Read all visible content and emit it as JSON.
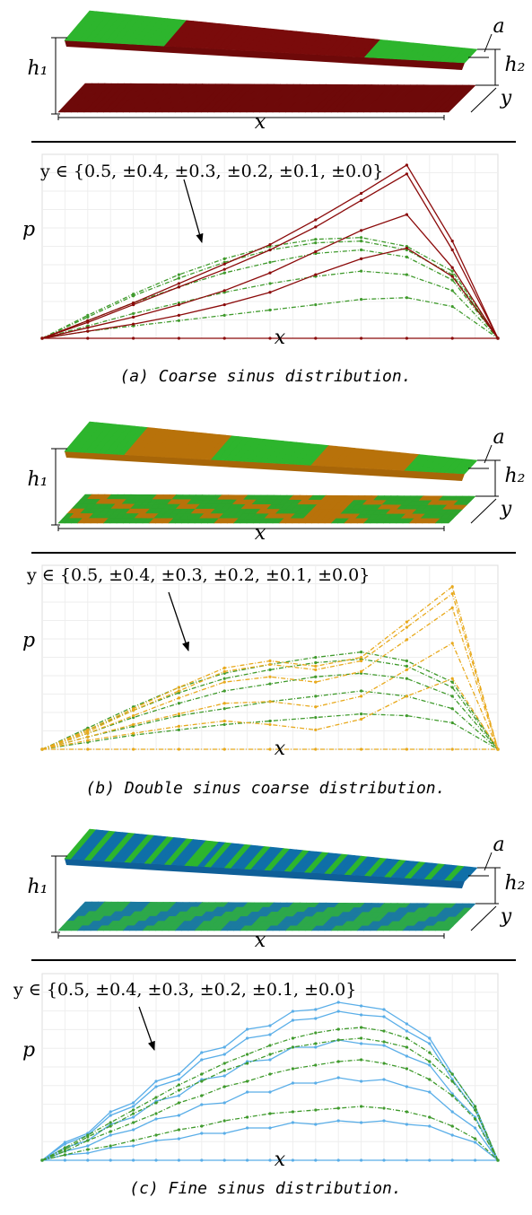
{
  "diagrams": [
    {
      "h1": "h₁",
      "h2": "h₂",
      "a": "a",
      "x": "x",
      "y": "y"
    },
    {
      "h1": "h₁",
      "h2": "h₂",
      "a": "a",
      "x": "x",
      "y": "y"
    },
    {
      "h1": "h₁",
      "h2": "h₂",
      "a": "a",
      "x": "x",
      "y": "y"
    }
  ],
  "captions": [
    "(a) Coarse sinus distribution.",
    "(b) Double sinus coarse distribution.",
    "(c) Fine sinus distribution."
  ],
  "chart_data": [
    {
      "type": "line",
      "annotation": "y ∈ {0.5, ±0.4, ±0.3, ±0.2, ±0.1, ±0.0}",
      "xlabel": "x",
      "ylabel": "p",
      "grid": true,
      "x": [
        0,
        0.1,
        0.2,
        0.3,
        0.4,
        0.5,
        0.6,
        0.7,
        0.8,
        0.9,
        1
      ],
      "xlim": [
        0,
        1
      ],
      "ylim": [
        0,
        1
      ],
      "series": [
        {
          "color": "#3f9a2c",
          "dash": true,
          "values": [
            0,
            0.13,
            0.25,
            0.36,
            0.45,
            0.52,
            0.56,
            0.57,
            0.52,
            0.38,
            0
          ]
        },
        {
          "color": "#3f9a2c",
          "dash": true,
          "values": [
            0,
            0.12,
            0.24,
            0.34,
            0.43,
            0.5,
            0.54,
            0.55,
            0.5,
            0.36,
            0
          ]
        },
        {
          "color": "#3f9a2c",
          "dash": true,
          "values": [
            0,
            0.1,
            0.2,
            0.29,
            0.37,
            0.43,
            0.48,
            0.5,
            0.46,
            0.33,
            0
          ]
        },
        {
          "color": "#3f9a2c",
          "dash": true,
          "values": [
            0,
            0.07,
            0.14,
            0.2,
            0.26,
            0.31,
            0.35,
            0.38,
            0.36,
            0.27,
            0
          ]
        },
        {
          "color": "#3f9a2c",
          "dash": true,
          "values": [
            0,
            0.04,
            0.07,
            0.1,
            0.13,
            0.16,
            0.19,
            0.22,
            0.23,
            0.18,
            0
          ]
        },
        {
          "color": "#8b0a0a",
          "dash": false,
          "values": [
            0,
            0.1,
            0.2,
            0.31,
            0.42,
            0.53,
            0.67,
            0.82,
            0.98,
            0.55,
            0
          ]
        },
        {
          "color": "#8b0a0a",
          "dash": false,
          "values": [
            0,
            0.09,
            0.19,
            0.29,
            0.39,
            0.5,
            0.63,
            0.78,
            0.93,
            0.5,
            0
          ]
        },
        {
          "color": "#8b0a0a",
          "dash": false,
          "values": [
            0,
            0.06,
            0.12,
            0.19,
            0.27,
            0.37,
            0.49,
            0.61,
            0.7,
            0.4,
            0
          ]
        },
        {
          "color": "#8b0a0a",
          "dash": false,
          "values": [
            0,
            0.04,
            0.08,
            0.13,
            0.19,
            0.26,
            0.36,
            0.45,
            0.51,
            0.35,
            0
          ]
        },
        {
          "color": "#8b0a0a",
          "dash": false,
          "values": [
            0,
            0,
            0,
            0,
            0,
            0,
            0,
            0,
            0,
            0,
            0
          ]
        }
      ]
    },
    {
      "type": "line",
      "annotation": "y ∈ {0.5, ±0.4, ±0.3, ±0.2, ±0.1, ±0.0}",
      "xlabel": "x",
      "ylabel": "p",
      "grid": true,
      "x": [
        0,
        0.1,
        0.2,
        0.3,
        0.4,
        0.5,
        0.6,
        0.7,
        0.8,
        0.9,
        1
      ],
      "xlim": [
        0,
        1
      ],
      "ylim": [
        0,
        1
      ],
      "series": [
        {
          "color": "#3f9a2c",
          "dash": true,
          "values": [
            0,
            0.12,
            0.24,
            0.35,
            0.43,
            0.48,
            0.52,
            0.55,
            0.5,
            0.38,
            0
          ]
        },
        {
          "color": "#3f9a2c",
          "dash": true,
          "values": [
            0,
            0.11,
            0.22,
            0.32,
            0.4,
            0.45,
            0.49,
            0.51,
            0.47,
            0.35,
            0
          ]
        },
        {
          "color": "#3f9a2c",
          "dash": true,
          "values": [
            0,
            0.09,
            0.18,
            0.26,
            0.33,
            0.37,
            0.41,
            0.43,
            0.4,
            0.3,
            0
          ]
        },
        {
          "color": "#3f9a2c",
          "dash": true,
          "values": [
            0,
            0.07,
            0.13,
            0.19,
            0.23,
            0.27,
            0.3,
            0.33,
            0.3,
            0.23,
            0
          ]
        },
        {
          "color": "#3f9a2c",
          "dash": true,
          "values": [
            0,
            0.04,
            0.08,
            0.11,
            0.14,
            0.16,
            0.18,
            0.2,
            0.19,
            0.15,
            0
          ]
        },
        {
          "color": "#e8a91c",
          "dash": true,
          "values": [
            0,
            0.11,
            0.23,
            0.35,
            0.46,
            0.5,
            0.47,
            0.52,
            0.72,
            0.92,
            0
          ]
        },
        {
          "color": "#e8a91c",
          "dash": true,
          "values": [
            0,
            0.1,
            0.22,
            0.33,
            0.44,
            0.48,
            0.45,
            0.5,
            0.69,
            0.88,
            0
          ]
        },
        {
          "color": "#e8a91c",
          "dash": true,
          "values": [
            0,
            0.09,
            0.19,
            0.29,
            0.38,
            0.41,
            0.38,
            0.44,
            0.62,
            0.8,
            0
          ]
        },
        {
          "color": "#e8a91c",
          "dash": true,
          "values": [
            0,
            0.07,
            0.14,
            0.2,
            0.26,
            0.27,
            0.24,
            0.3,
            0.45,
            0.6,
            0
          ]
        },
        {
          "color": "#e8a91c",
          "dash": true,
          "values": [
            0,
            0.05,
            0.09,
            0.13,
            0.16,
            0.14,
            0.11,
            0.17,
            0.3,
            0.4,
            0
          ]
        },
        {
          "color": "#e8a91c",
          "dash": true,
          "values": [
            0,
            0,
            0,
            0,
            0,
            0,
            0,
            0,
            0,
            0,
            0
          ]
        }
      ]
    },
    {
      "type": "line",
      "annotation": "y ∈ {0.5, ±0.4, ±0.3, ±0.2, ±0.1, ±0.0}",
      "xlabel": "x",
      "ylabel": "p",
      "grid": true,
      "x": [
        0,
        0.05,
        0.1,
        0.15,
        0.2,
        0.25,
        0.3,
        0.35,
        0.4,
        0.45,
        0.5,
        0.55,
        0.6,
        0.65,
        0.7,
        0.75,
        0.8,
        0.85,
        0.9,
        0.95,
        1
      ],
      "xlim": [
        0,
        1
      ],
      "ylim": [
        0,
        1
      ],
      "series": [
        {
          "color": "#5aaee8",
          "dash": false,
          "values": [
            0,
            0.1,
            0.15,
            0.27,
            0.32,
            0.44,
            0.48,
            0.6,
            0.63,
            0.73,
            0.75,
            0.83,
            0.84,
            0.88,
            0.86,
            0.84,
            0.76,
            0.68,
            0.48,
            0.3,
            0
          ]
        },
        {
          "color": "#5aaee8",
          "dash": false,
          "values": [
            0,
            0.09,
            0.14,
            0.25,
            0.3,
            0.41,
            0.45,
            0.56,
            0.59,
            0.68,
            0.7,
            0.78,
            0.79,
            0.83,
            0.81,
            0.8,
            0.72,
            0.65,
            0.45,
            0.28,
            0
          ]
        },
        {
          "color": "#5aaee8",
          "dash": false,
          "values": [
            0,
            0.07,
            0.11,
            0.2,
            0.24,
            0.33,
            0.36,
            0.45,
            0.47,
            0.55,
            0.56,
            0.63,
            0.63,
            0.67,
            0.65,
            0.64,
            0.58,
            0.53,
            0.37,
            0.24,
            0
          ]
        },
        {
          "color": "#5aaee8",
          "dash": false,
          "values": [
            0,
            0.05,
            0.08,
            0.14,
            0.17,
            0.23,
            0.25,
            0.31,
            0.32,
            0.38,
            0.38,
            0.43,
            0.43,
            0.46,
            0.44,
            0.45,
            0.41,
            0.38,
            0.27,
            0.18,
            0
          ]
        },
        {
          "color": "#5aaee8",
          "dash": false,
          "values": [
            0,
            0.03,
            0.04,
            0.07,
            0.08,
            0.11,
            0.12,
            0.15,
            0.15,
            0.18,
            0.18,
            0.21,
            0.2,
            0.22,
            0.21,
            0.22,
            0.2,
            0.19,
            0.14,
            0.1,
            0
          ]
        },
        {
          "color": "#5aaee8",
          "dash": false,
          "values": [
            0,
            0,
            0,
            0,
            0,
            0,
            0,
            0,
            0,
            0,
            0,
            0,
            0,
            0,
            0,
            0,
            0,
            0,
            0,
            0,
            0
          ]
        },
        {
          "color": "#3f9a2c",
          "dash": true,
          "values": [
            0,
            0.07,
            0.14,
            0.21,
            0.28,
            0.35,
            0.42,
            0.48,
            0.54,
            0.59,
            0.64,
            0.68,
            0.71,
            0.73,
            0.74,
            0.72,
            0.68,
            0.6,
            0.48,
            0.3,
            0
          ]
        },
        {
          "color": "#3f9a2c",
          "dash": true,
          "values": [
            0,
            0.06,
            0.13,
            0.19,
            0.26,
            0.32,
            0.39,
            0.44,
            0.5,
            0.54,
            0.59,
            0.63,
            0.65,
            0.67,
            0.68,
            0.66,
            0.63,
            0.55,
            0.44,
            0.28,
            0
          ]
        },
        {
          "color": "#3f9a2c",
          "dash": true,
          "values": [
            0,
            0.05,
            0.11,
            0.16,
            0.21,
            0.26,
            0.32,
            0.36,
            0.41,
            0.44,
            0.48,
            0.51,
            0.53,
            0.55,
            0.56,
            0.54,
            0.51,
            0.45,
            0.36,
            0.23,
            0
          ]
        },
        {
          "color": "#3f9a2c",
          "dash": true,
          "values": [
            0,
            0.03,
            0.06,
            0.08,
            0.11,
            0.14,
            0.17,
            0.19,
            0.22,
            0.24,
            0.26,
            0.27,
            0.28,
            0.29,
            0.3,
            0.29,
            0.27,
            0.24,
            0.19,
            0.12,
            0
          ]
        }
      ]
    }
  ]
}
